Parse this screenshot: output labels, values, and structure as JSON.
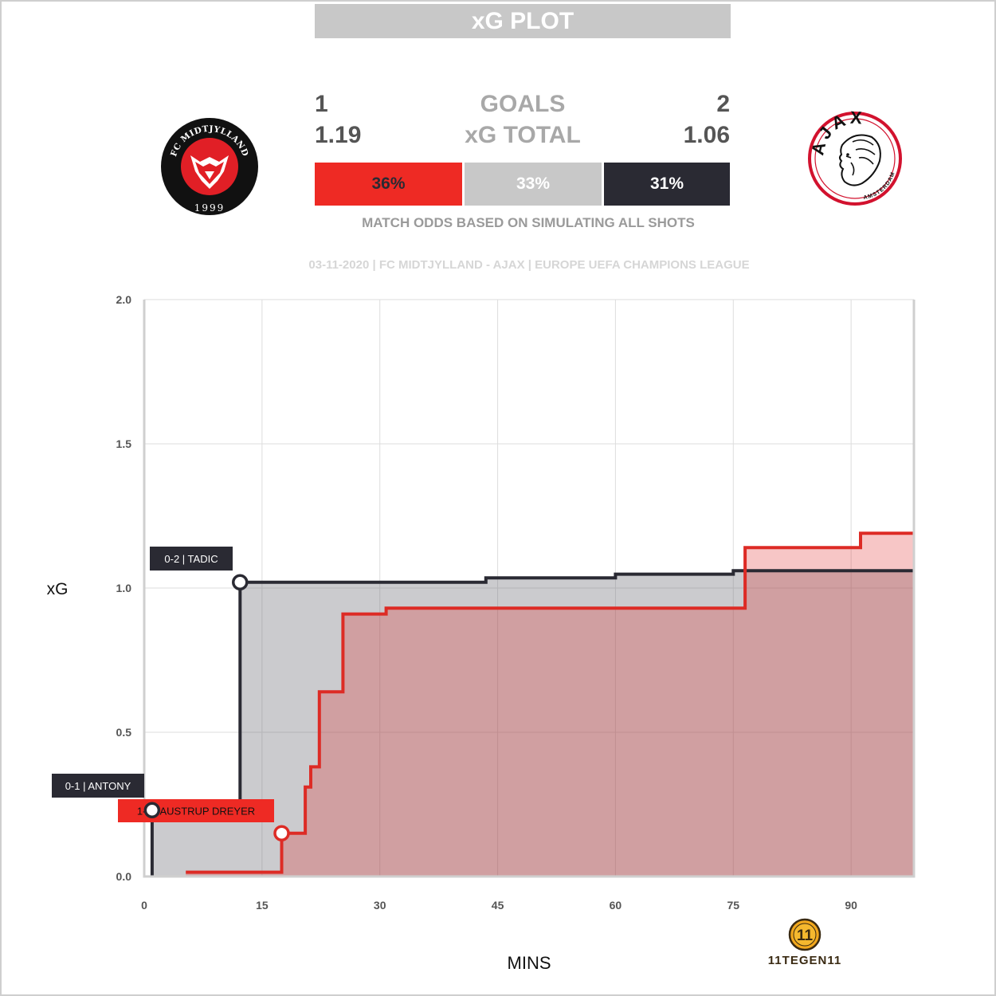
{
  "title": "xG PLOT",
  "home": {
    "goals": "1",
    "xg": "1.19",
    "odds": "36%",
    "color": "#ee2a24"
  },
  "away": {
    "goals": "2",
    "xg": "1.06",
    "odds": "31%",
    "color": "#2a2a33"
  },
  "draw": {
    "odds": "33%",
    "color": "#c8c8c8"
  },
  "labels": {
    "goals": "GOALS",
    "xg_total": "xG TOTAL"
  },
  "odds_note": "MATCH ODDS BASED ON SIMULATING ALL SHOTS",
  "match_info": "03-11-2020 | FC MIDTJYLLAND - AJAX | EUROPE UEFA CHAMPIONS LEAGUE",
  "home_logo": {
    "text": "FC MIDTJYLLAND",
    "year": "1999"
  },
  "away_logo": {
    "text": "AJAX",
    "subtext": "AMSTERDAM"
  },
  "brand": {
    "mark": "11",
    "text": "11TEGEN11"
  },
  "chart_data": {
    "type": "area",
    "xlabel": "MINS",
    "ylabel": "xG",
    "xlim": [
      0,
      98
    ],
    "ylim": [
      0,
      2
    ],
    "xticks": [
      0,
      15,
      30,
      45,
      60,
      75,
      90
    ],
    "yticks": [
      0.0,
      0.5,
      1.0,
      1.5,
      2.0
    ],
    "ytick_labels": [
      "0.0",
      "0.5",
      "1.0",
      "1.5",
      "2.0"
    ],
    "grid": true,
    "series": [
      {
        "team": "away",
        "points": [
          [
            1,
            0
          ],
          [
            1,
            0.23
          ],
          [
            12.2,
            0.23
          ],
          [
            12.2,
            1.02
          ],
          [
            43.5,
            1.02
          ],
          [
            43.5,
            1.035
          ],
          [
            60,
            1.035
          ],
          [
            60,
            1.048
          ],
          [
            75,
            1.048
          ],
          [
            75,
            1.06
          ],
          [
            98,
            1.06
          ]
        ]
      },
      {
        "team": "home",
        "points": [
          [
            5.3,
            0.015
          ],
          [
            17.5,
            0.015
          ],
          [
            17.5,
            0.15
          ],
          [
            20.5,
            0.15
          ],
          [
            20.5,
            0.31
          ],
          [
            21.2,
            0.31
          ],
          [
            21.2,
            0.38
          ],
          [
            22.3,
            0.38
          ],
          [
            22.3,
            0.64
          ],
          [
            25.3,
            0.64
          ],
          [
            25.3,
            0.91
          ],
          [
            30.8,
            0.91
          ],
          [
            30.8,
            0.93
          ],
          [
            76.5,
            0.93
          ],
          [
            76.5,
            1.14
          ],
          [
            91.2,
            1.14
          ],
          [
            91.2,
            1.19
          ],
          [
            98,
            1.19
          ]
        ]
      }
    ],
    "goals": [
      {
        "label": "0-1 | ANTONY",
        "minute": 1,
        "xg": 0.23,
        "team": "away"
      },
      {
        "label": "0-2 | TADIC",
        "minute": 12.2,
        "xg": 1.02,
        "team": "away"
      },
      {
        "label": "1-2 | AUSTRUP DREYER",
        "minute": 17.5,
        "xg": 0.15,
        "team": "home"
      }
    ]
  }
}
